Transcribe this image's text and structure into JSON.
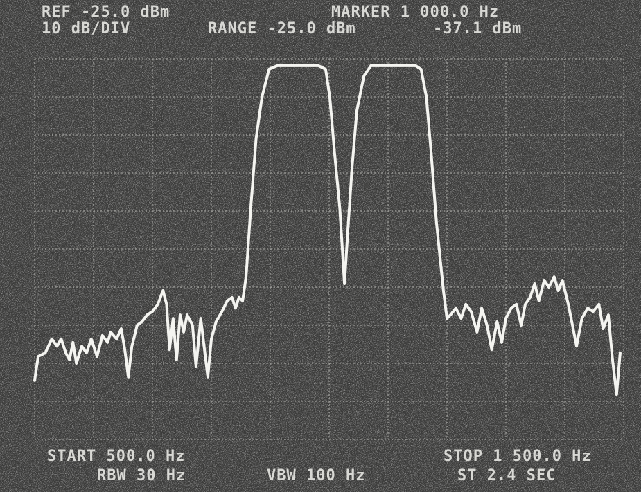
{
  "chart_data": {
    "type": "line",
    "annotations": [
      "REF -25.0 dBm",
      "10 dB/DIV",
      "RANGE -25.0 dBm",
      "MARKER 1 000.0 Hz",
      "-37.1 dBm",
      "START 500.0 Hz",
      "RBW 30 Hz",
      "VBW 100 Hz",
      "STOP 1 500.0 Hz",
      "ST 2.4 SEC"
    ],
    "x": [
      500,
      506,
      518,
      529,
      538,
      545,
      553,
      559,
      565,
      571,
      580,
      588,
      596,
      606,
      615,
      624,
      629,
      639,
      647,
      653,
      659,
      665,
      674,
      682,
      691,
      700,
      709,
      718,
      724,
      729,
      735,
      741,
      747,
      753,
      759,
      768,
      774,
      782,
      794,
      800,
      808,
      818,
      827,
      835,
      841,
      847,
      853,
      859,
      867,
      876,
      886,
      898,
      912,
      935,
      982,
      994,
      1001,
      1009,
      1018,
      1026,
      1032,
      1039,
      1047,
      1059,
      1071,
      1100,
      1147,
      1156,
      1165,
      1173,
      1182,
      1194,
      1200,
      1206,
      1215,
      1224,
      1232,
      1241,
      1251,
      1259,
      1268,
      1276,
      1285,
      1293,
      1300,
      1309,
      1318,
      1326,
      1333,
      1341,
      1349,
      1356,
      1365,
      1373,
      1382,
      1389,
      1396,
      1406,
      1413,
      1420,
      1429,
      1439,
      1448,
      1458,
      1465,
      1474,
      1481,
      1488,
      1494
    ],
    "values": [
      -109.5,
      -103.2,
      -102.3,
      -98.6,
      -100.5,
      -98.6,
      -102.3,
      -104.1,
      -99.5,
      -105,
      -100.5,
      -102.3,
      -98.6,
      -103.2,
      -97.7,
      -99.5,
      -96.8,
      -98.6,
      -95.9,
      -101.4,
      -108.6,
      -100.5,
      -95,
      -94.1,
      -92.3,
      -91.4,
      -89.5,
      -85.9,
      -89.5,
      -101.4,
      -93.2,
      -104.1,
      -92.3,
      -96.8,
      -92.3,
      -95,
      -105.9,
      -93.2,
      -108.6,
      -98.6,
      -94.1,
      -91.4,
      -88.6,
      -87.7,
      -90.5,
      -87.7,
      -88.6,
      -82.3,
      -64.1,
      -45.9,
      -35,
      -27.7,
      -26.8,
      -26.8,
      -26.8,
      -27.7,
      -35,
      -49.5,
      -64.1,
      -84.1,
      -69.5,
      -53.2,
      -38.6,
      -29.5,
      -26.8,
      -26.8,
      -26.8,
      -27.7,
      -35,
      -49.5,
      -67.7,
      -85.9,
      -93.2,
      -92.3,
      -90.5,
      -93.2,
      -89.5,
      -91.4,
      -96.8,
      -90.5,
      -95,
      -101.4,
      -94.1,
      -99.5,
      -93.2,
      -90.5,
      -89.5,
      -95,
      -89.5,
      -87.7,
      -84.1,
      -88.6,
      -83.2,
      -85,
      -82.3,
      -85.9,
      -83.2,
      -89.5,
      -95,
      -100.5,
      -93.2,
      -90.5,
      -91.4,
      -89.5,
      -95.9,
      -92.3,
      -104.1,
      -113.2,
      -102.3
    ],
    "color": "#f4f4f0",
    "xlim": [
      500,
      1500
    ],
    "ylim": [
      -125,
      -25
    ],
    "xticks": [
      500,
      600,
      700,
      800,
      900,
      1000,
      1100,
      1200,
      1300,
      1400,
      1500
    ],
    "yticks": [
      -125,
      -115,
      -105,
      -95,
      -85,
      -75,
      -65,
      -55,
      -45,
      -35,
      -25
    ],
    "grid": true
  }
}
